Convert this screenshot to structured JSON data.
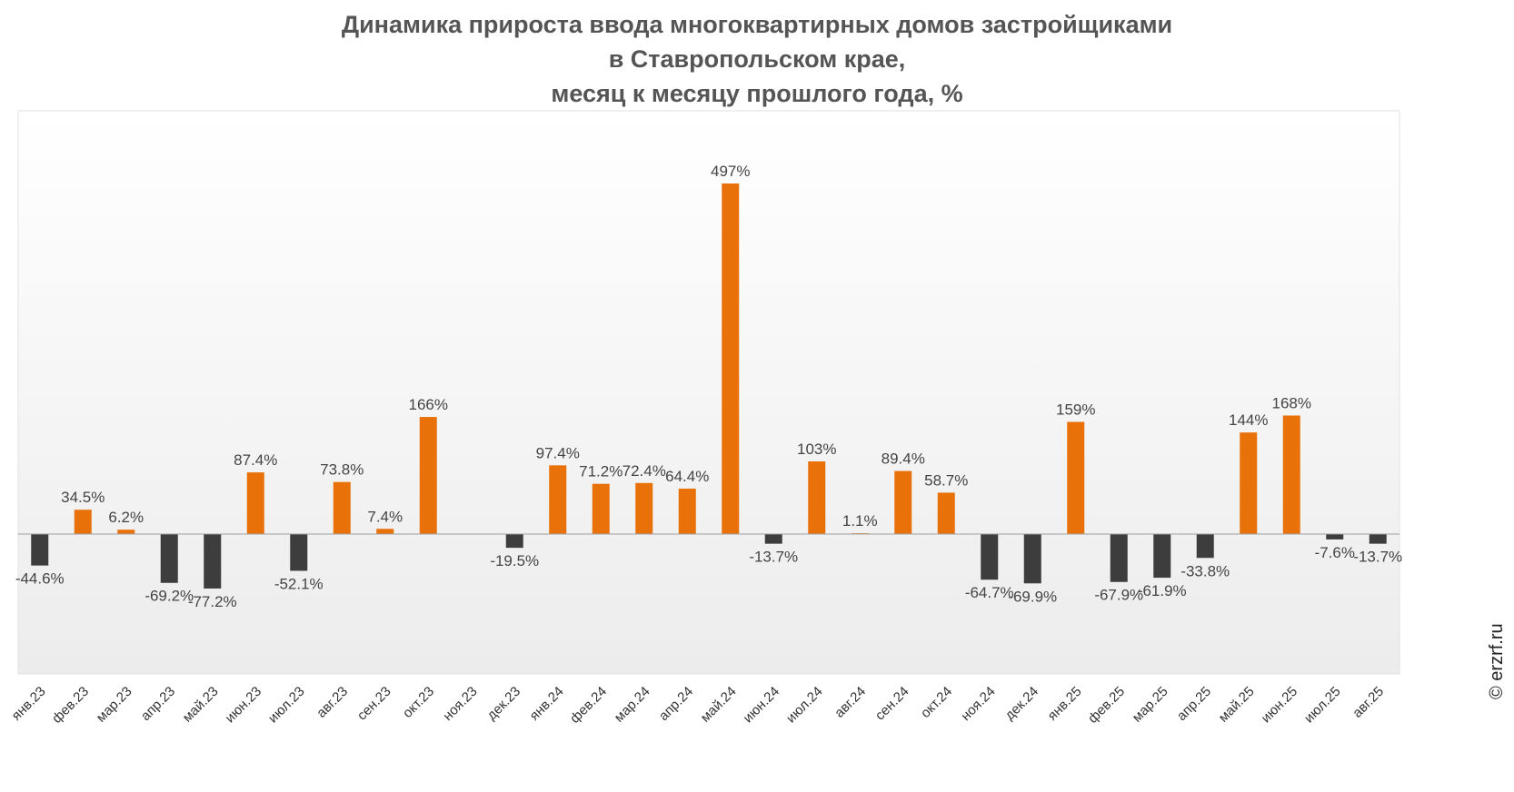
{
  "chart_data": {
    "type": "bar",
    "title_lines": [
      "Динамика прироста ввода многоквартирных домов застройщиками",
      "в Ставропольском крае,",
      "месяц к месяцу прошлого года, %"
    ],
    "categories": [
      "янв.23",
      "фев.23",
      "мар.23",
      "апр.23",
      "май.23",
      "июн.23",
      "июл.23",
      "авг.23",
      "сен.23",
      "окт.23",
      "ноя.23",
      "дек.23",
      "янв.24",
      "фев.24",
      "мар.24",
      "апр.24",
      "май.24",
      "июн.24",
      "июл.24",
      "авг.24",
      "сен.24",
      "окт.24",
      "ноя.24",
      "дек.24",
      "янв.25",
      "фев.25",
      "мар.25",
      "апр.25",
      "май.25",
      "июн.25",
      "июл.25",
      "авг.25"
    ],
    "values": [
      -44.6,
      34.5,
      6.2,
      -69.2,
      -77.2,
      87.4,
      -52.1,
      73.8,
      7.4,
      166,
      null,
      -19.5,
      97.4,
      71.2,
      72.4,
      64.4,
      497,
      -13.7,
      103,
      1.1,
      89.4,
      58.7,
      -64.7,
      -69.9,
      159,
      -67.9,
      -61.9,
      -33.8,
      144,
      168,
      -7.6,
      -13.7
    ],
    "data_labels": [
      "-44.6%",
      "34.5%",
      "6.2%",
      "-69.2%",
      "-77.2%",
      "87.4%",
      "-52.1%",
      "73.8%",
      "7.4%",
      "166%",
      "",
      "-19.5%",
      "97.4%",
      "71.2%",
      "72.4%",
      "64.4%",
      "497%",
      "-13.7%",
      "103%",
      "1.1%",
      "89.4%",
      "58.7%",
      "-64.7%",
      "-69.9%",
      "159%",
      "-67.9%",
      "-61.9%",
      "-33.8%",
      "144%",
      "168%",
      "-7.6%",
      "-13.7%"
    ],
    "ylim": [
      -200,
      600
    ],
    "grid": false,
    "colors": {
      "positive": "#e8710a",
      "negative": "#3d3d3d"
    }
  },
  "watermark": "© erzrf.ru"
}
